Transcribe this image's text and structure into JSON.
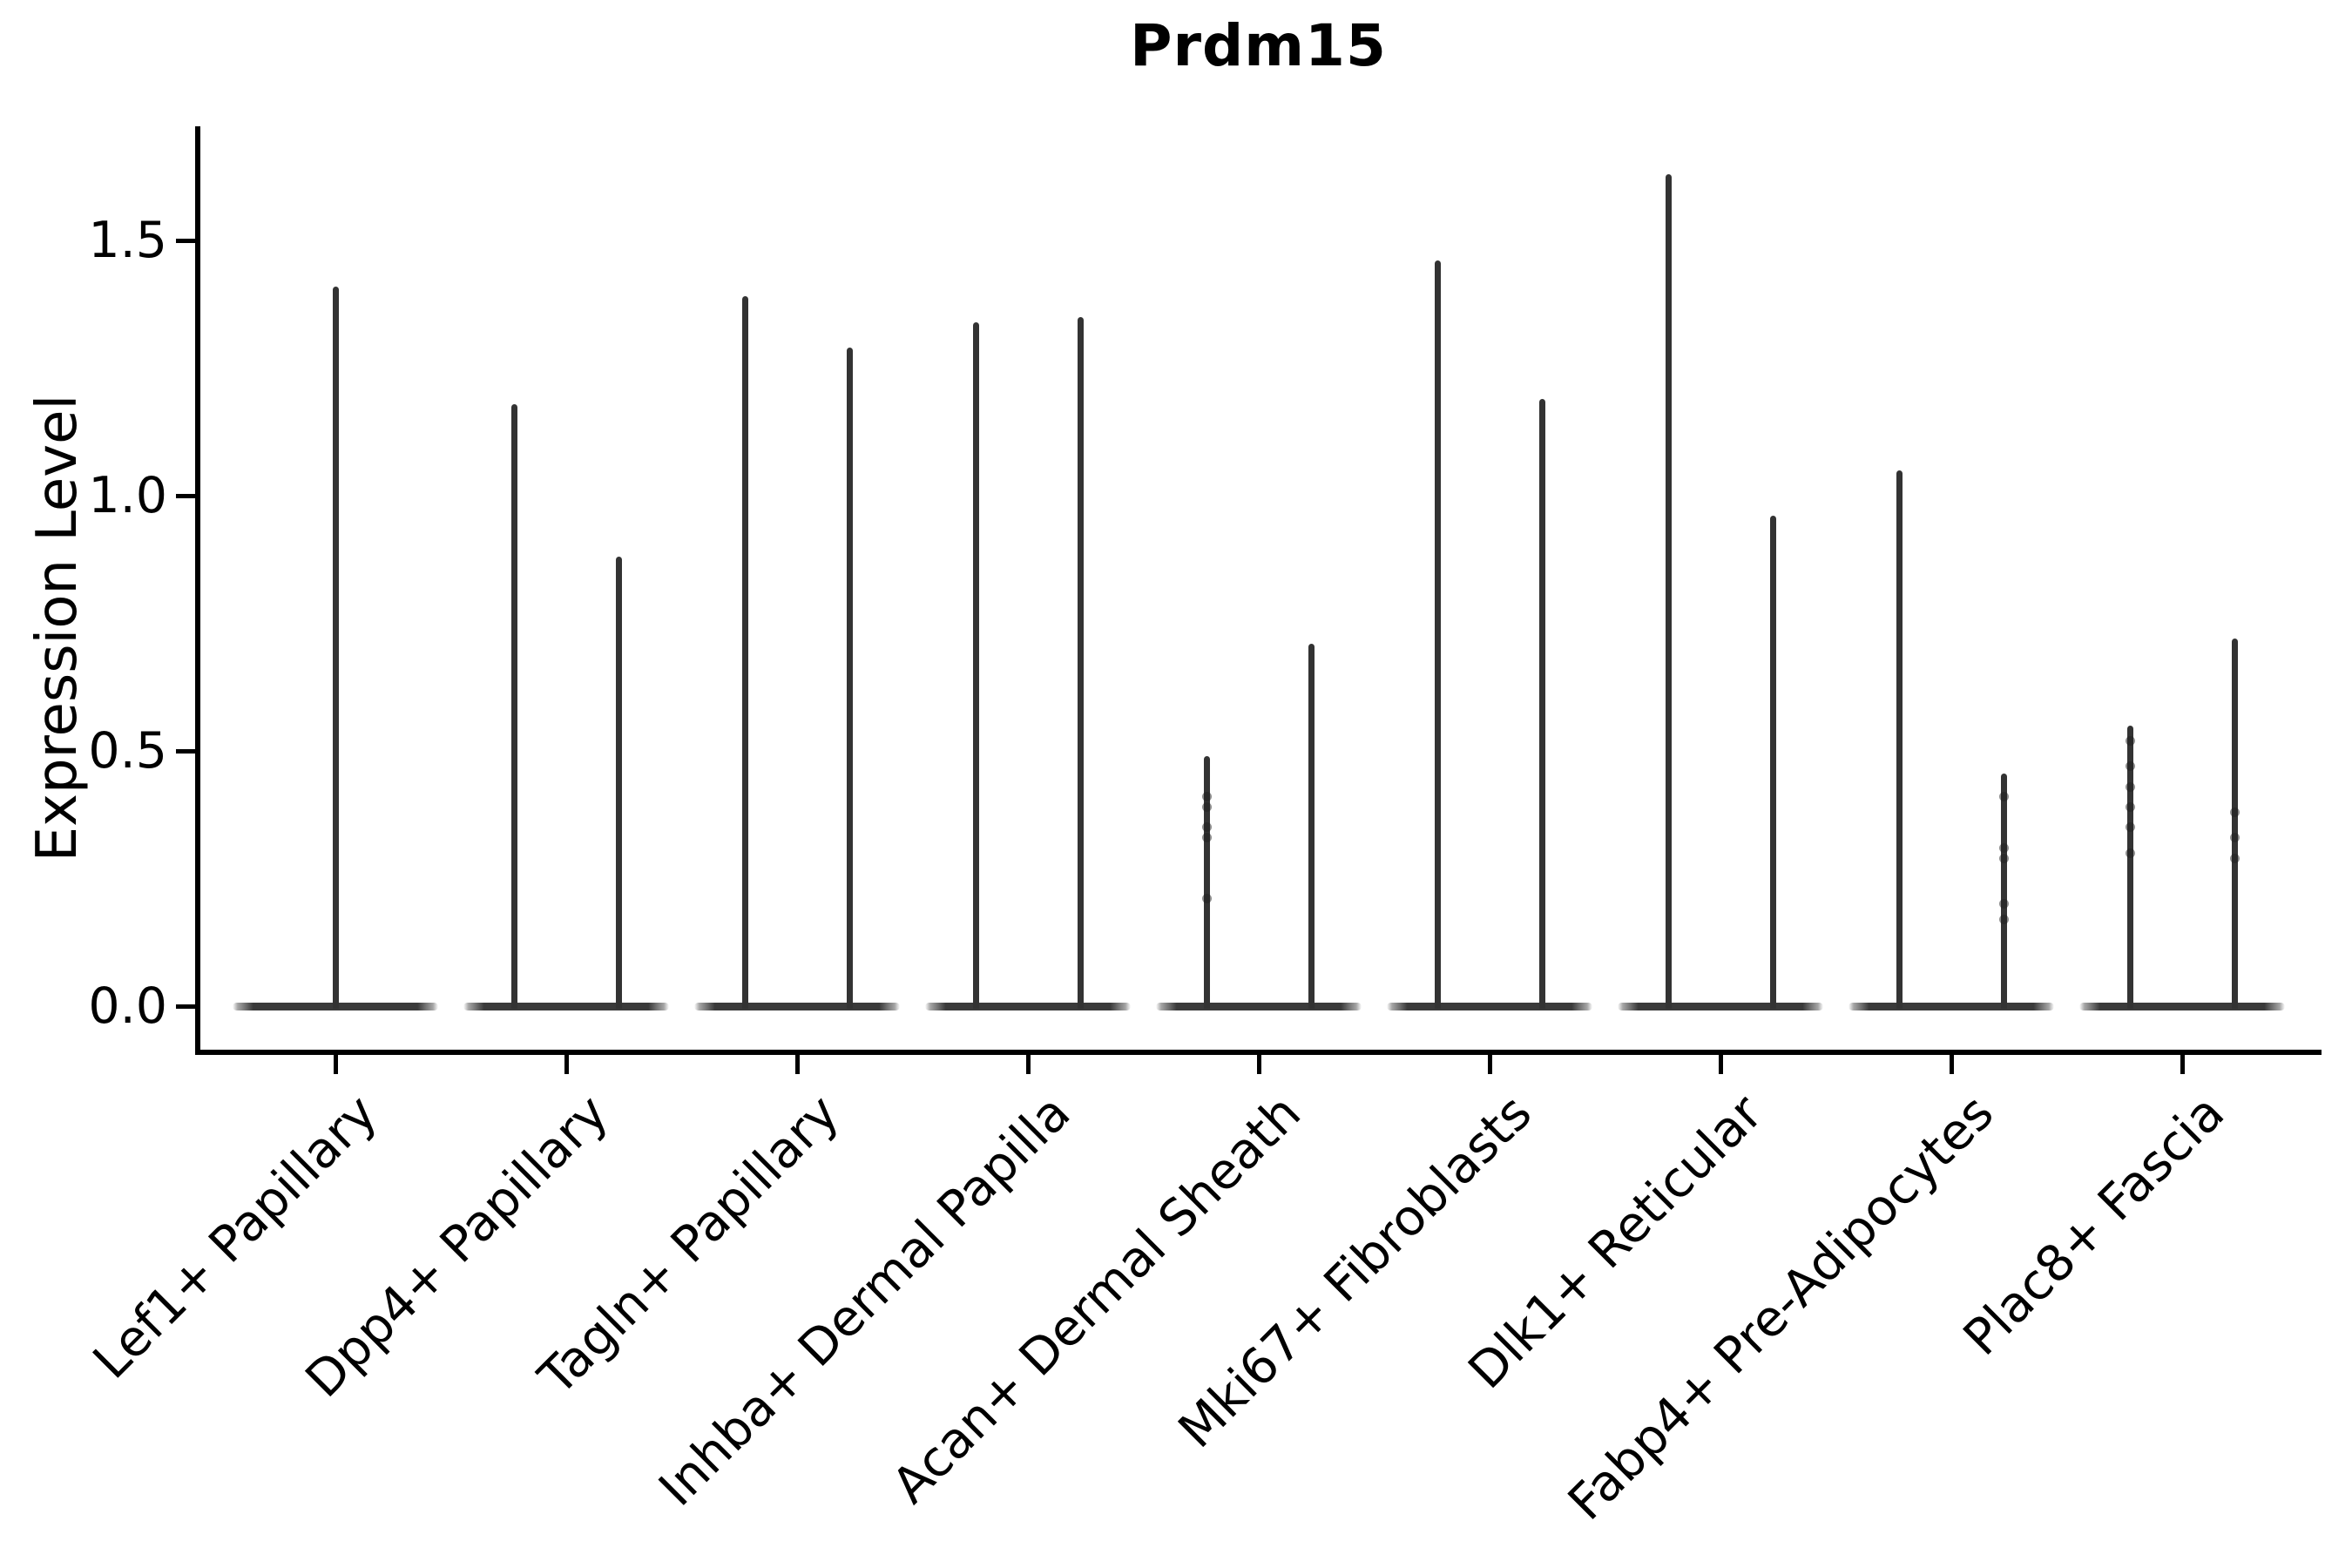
{
  "title": "Prdm15",
  "y_axis": {
    "label": "Expression Level",
    "tick_labels": [
      "0.0",
      "0.5",
      "1.0",
      "1.5"
    ],
    "tick_values": [
      0.0,
      0.5,
      1.0,
      1.5
    ]
  },
  "x_axis": {
    "categories": [
      "Lef1+ Papillary",
      "Dpp4+ Papillary",
      "Tagln+ Papillary",
      "Inhba+ Dermal Papilla",
      "Acan+ Dermal Sheath",
      "Mki67+ Fibroblasts",
      "Dlk1+ Reticular",
      "Fabp4+ Pre-Adipocytes",
      "Plac8+ Fascia"
    ],
    "label": ""
  },
  "chart_data": {
    "type": "violin",
    "title": "Prdm15",
    "xlabel": "",
    "ylabel": "Expression Level",
    "ylim": [
      0,
      1.72
    ],
    "y_ticks": [
      0.0,
      0.5,
      1.0,
      1.5
    ],
    "grid": false,
    "legend": "none",
    "orientation": "vertical",
    "violin_color": "#333333",
    "axis_color": "#000000",
    "background_color": "#ffffff",
    "description": "Each category shows narrow spike-shaped violins: wide flat density at expression 0 with a thin spike up to the max expression value.",
    "categories": [
      {
        "label": "Lef1+ Papillary",
        "violins": [
          {
            "max": 1.41,
            "points": []
          }
        ]
      },
      {
        "label": "Dpp4+ Papillary",
        "violins": [
          {
            "max": 1.18,
            "points": []
          },
          {
            "max": 0.88,
            "points": []
          }
        ]
      },
      {
        "label": "Tagln+ Papillary",
        "violins": [
          {
            "max": 1.39,
            "points": []
          },
          {
            "max": 1.29,
            "points": []
          }
        ]
      },
      {
        "label": "Inhba+ Dermal Papilla",
        "violins": [
          {
            "max": 1.34,
            "points": []
          },
          {
            "max": 1.35,
            "points": []
          }
        ]
      },
      {
        "label": "Acan+ Dermal Sheath",
        "violins": [
          {
            "max": 0.49,
            "points": [
              0.41,
              0.39,
              0.35,
              0.33,
              0.21
            ]
          },
          {
            "max": 0.71,
            "points": []
          }
        ]
      },
      {
        "label": "Mki67+ Fibroblasts",
        "violins": [
          {
            "max": 1.46,
            "points": []
          },
          {
            "max": 1.19,
            "points": []
          }
        ]
      },
      {
        "label": "Dlk1+ Reticular",
        "violins": [
          {
            "max": 1.63,
            "points": []
          },
          {
            "max": 0.96,
            "points": []
          }
        ]
      },
      {
        "label": "Fabp4+ Pre-Adipocytes",
        "violins": [
          {
            "max": 1.05,
            "points": []
          },
          {
            "max": 0.455,
            "points": [
              0.41,
              0.31,
              0.29,
              0.2,
              0.17
            ]
          }
        ]
      },
      {
        "label": "Plac8+ Fascia",
        "violins": [
          {
            "max": 0.55,
            "points": [
              0.52,
              0.47,
              0.43,
              0.39,
              0.35,
              0.3
            ]
          },
          {
            "max": 0.72,
            "points": [
              0.38,
              0.33,
              0.29
            ]
          }
        ]
      }
    ]
  }
}
